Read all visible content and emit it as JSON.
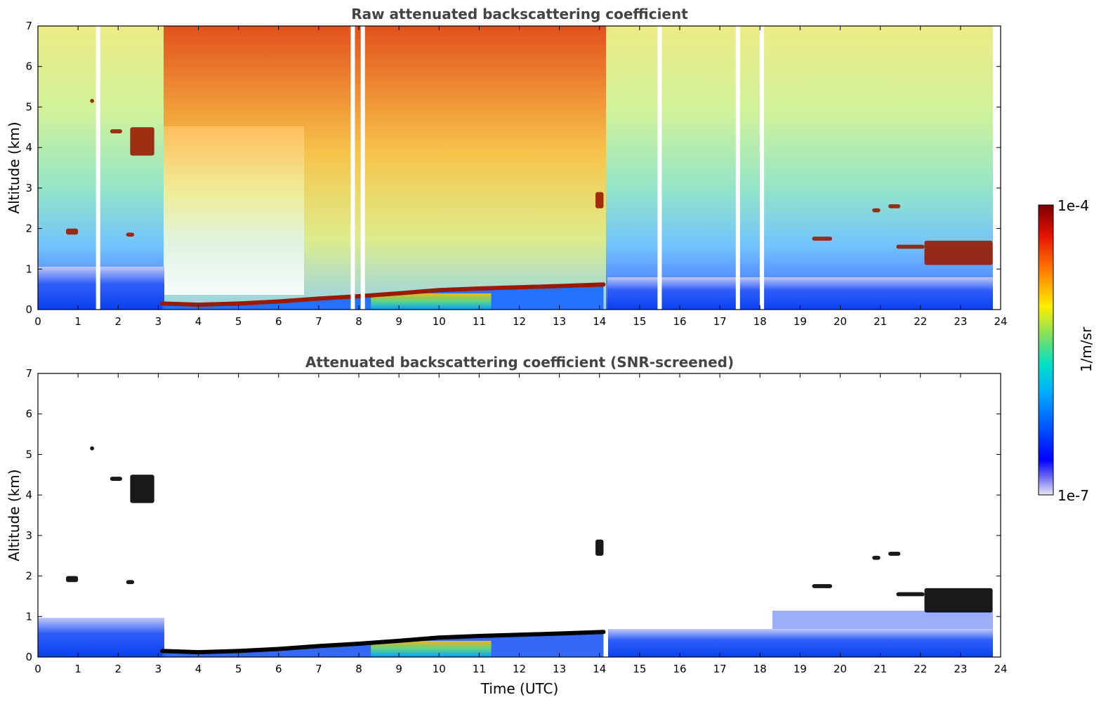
{
  "chart_data": [
    {
      "type": "heatmap",
      "title": "Raw attenuated backscattering coefficient",
      "xlabel": "",
      "ylabel": "Altitude (km)",
      "xlim": [
        0,
        24
      ],
      "ylim": [
        0,
        7
      ],
      "xticks": [
        "0",
        "1",
        "2",
        "3",
        "4",
        "5",
        "6",
        "7",
        "8",
        "9",
        "10",
        "11",
        "12",
        "13",
        "14",
        "15",
        "16",
        "17",
        "18",
        "19",
        "20",
        "21",
        "22",
        "23",
        "24"
      ],
      "yticks": [
        "0",
        "1",
        "2",
        "3",
        "4",
        "5",
        "6",
        "7"
      ],
      "boundary_layer_top_km": [
        {
          "x": 3.1,
          "y": 0.15
        },
        {
          "x": 4.0,
          "y": 0.12
        },
        {
          "x": 5.0,
          "y": 0.15
        },
        {
          "x": 6.0,
          "y": 0.2
        },
        {
          "x": 7.0,
          "y": 0.27
        },
        {
          "x": 8.0,
          "y": 0.33
        },
        {
          "x": 9.0,
          "y": 0.4
        },
        {
          "x": 10.0,
          "y": 0.48
        },
        {
          "x": 11.0,
          "y": 0.52
        },
        {
          "x": 12.0,
          "y": 0.55
        },
        {
          "x": 13.0,
          "y": 0.58
        },
        {
          "x": 14.1,
          "y": 0.62
        }
      ],
      "cloud_layers": [
        {
          "x": [
            0.7,
            1.0
          ],
          "y": [
            1.85,
            2.0
          ]
        },
        {
          "x": [
            1.3,
            1.4
          ],
          "y": [
            5.1,
            5.2
          ]
        },
        {
          "x": [
            1.8,
            2.1
          ],
          "y": [
            4.35,
            4.45
          ]
        },
        {
          "x": [
            2.2,
            2.4
          ],
          "y": [
            1.8,
            1.9
          ]
        },
        {
          "x": [
            2.3,
            2.9
          ],
          "y": [
            3.8,
            4.5
          ]
        },
        {
          "x": [
            13.9,
            14.1
          ],
          "y": [
            2.5,
            2.9
          ]
        },
        {
          "x": [
            19.3,
            19.8
          ],
          "y": [
            1.7,
            1.8
          ]
        },
        {
          "x": [
            20.8,
            21.0
          ],
          "y": [
            2.4,
            2.5
          ]
        },
        {
          "x": [
            21.2,
            21.5
          ],
          "y": [
            2.5,
            2.6
          ]
        },
        {
          "x": [
            21.4,
            22.1
          ],
          "y": [
            1.5,
            1.6
          ]
        },
        {
          "x": [
            22.1,
            23.8
          ],
          "y": [
            1.1,
            1.7
          ]
        }
      ]
    },
    {
      "type": "heatmap",
      "title": "Attenuated backscattering coefficient (SNR-screened)",
      "xlabel": "Time (UTC)",
      "ylabel": "Altitude (km)",
      "xlim": [
        0,
        24
      ],
      "ylim": [
        0,
        7
      ],
      "xticks": [
        "0",
        "1",
        "2",
        "3",
        "4",
        "5",
        "6",
        "7",
        "8",
        "9",
        "10",
        "11",
        "12",
        "13",
        "14",
        "15",
        "16",
        "17",
        "18",
        "19",
        "20",
        "21",
        "22",
        "23",
        "24"
      ],
      "yticks": [
        "0",
        "1",
        "2",
        "3",
        "4",
        "5",
        "6",
        "7"
      ]
    }
  ],
  "colorbar": {
    "label": "1/m/sr",
    "max_label": "1e-4",
    "min_label": "1e-7",
    "scale": "log",
    "colormap": "jet"
  },
  "colors": {
    "background": "#ffffff",
    "axis": "#000000",
    "title": "#444444",
    "layer_raw": "#9a1a00",
    "layer_screened": "#000000"
  }
}
